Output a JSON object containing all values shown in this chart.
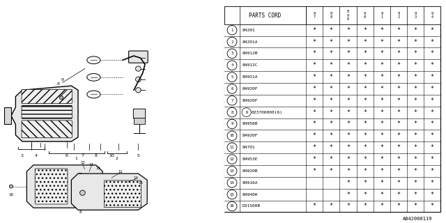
{
  "title": "1993 Subaru Justy Lens And Body Diagram for 784912590",
  "bg_color": "#ffffff",
  "table_header": "PARTS CORD",
  "year_cols": [
    "8\n7",
    "8\n8",
    "8\n9\n0",
    "9\n0",
    "9\n1",
    "9\n2",
    "9\n3",
    "9\n4"
  ],
  "rows": [
    {
      "num": "1",
      "part": "84201",
      "marks": [
        1,
        1,
        1,
        1,
        1,
        1,
        1,
        1
      ]
    },
    {
      "num": "2",
      "part": "84201A",
      "marks": [
        1,
        1,
        1,
        1,
        1,
        1,
        1,
        1
      ]
    },
    {
      "num": "3",
      "part": "84912B",
      "marks": [
        1,
        1,
        1,
        1,
        1,
        1,
        1,
        1
      ]
    },
    {
      "num": "4",
      "part": "84912C",
      "marks": [
        1,
        1,
        1,
        1,
        1,
        1,
        1,
        1
      ]
    },
    {
      "num": "5",
      "part": "84931A",
      "marks": [
        1,
        1,
        1,
        1,
        1,
        1,
        1,
        1
      ]
    },
    {
      "num": "6",
      "part": "84920F",
      "marks": [
        1,
        1,
        1,
        1,
        1,
        1,
        1,
        1
      ]
    },
    {
      "num": "7",
      "part": "84920F",
      "marks": [
        1,
        1,
        1,
        1,
        1,
        1,
        1,
        1
      ]
    },
    {
      "num": "8",
      "part": "N023706000(6)",
      "marks": [
        1,
        1,
        1,
        1,
        1,
        1,
        1,
        1
      ]
    },
    {
      "num": "9",
      "part": "84956B",
      "marks": [
        1,
        1,
        1,
        1,
        1,
        1,
        1,
        1
      ]
    },
    {
      "num": "10",
      "part": "84920F",
      "marks": [
        1,
        1,
        1,
        1,
        1,
        1,
        1,
        1
      ]
    },
    {
      "num": "11",
      "part": "84701",
      "marks": [
        1,
        1,
        1,
        1,
        1,
        1,
        1,
        1
      ]
    },
    {
      "num": "12",
      "part": "84953E",
      "marks": [
        1,
        1,
        1,
        1,
        1,
        1,
        1,
        1
      ]
    },
    {
      "num": "13",
      "part": "84920B",
      "marks": [
        1,
        1,
        1,
        1,
        1,
        1,
        1,
        1
      ]
    },
    {
      "num": "14",
      "part": "84916A",
      "marks": [
        0,
        0,
        1,
        1,
        1,
        1,
        1,
        1
      ]
    },
    {
      "num": "15",
      "part": "84940H",
      "marks": [
        0,
        0,
        1,
        1,
        1,
        1,
        1,
        1
      ]
    },
    {
      "num": "16",
      "part": "D31500B",
      "marks": [
        1,
        1,
        1,
        1,
        1,
        1,
        1,
        1
      ]
    }
  ],
  "footer": "A842000119",
  "line_color": "#000000",
  "text_color": "#000000"
}
